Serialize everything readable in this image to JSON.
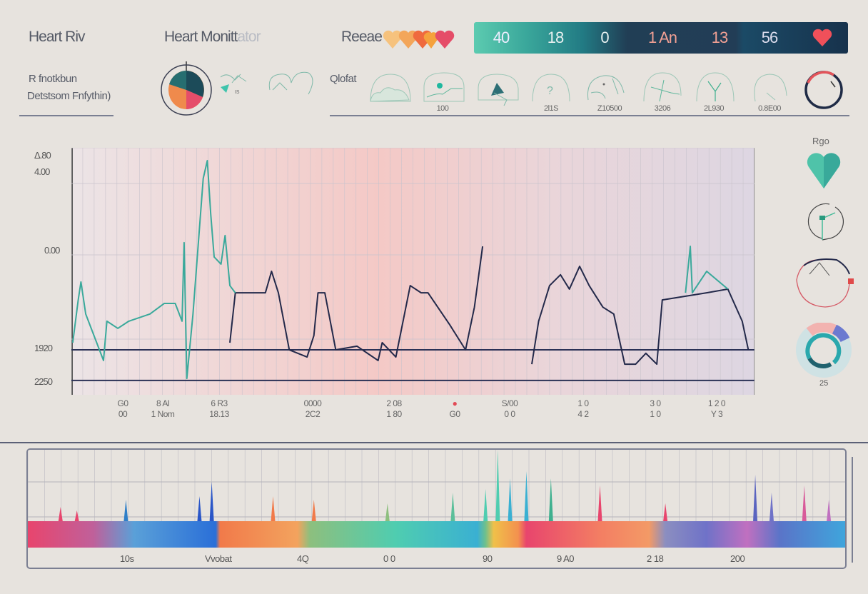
{
  "header": {
    "app_title": "Heart Riv",
    "monitor_title": "Heart Monitt",
    "monitor_title_faded": "ator",
    "rate_label": "Reeae",
    "subtitle_line1": "R fnotkbun",
    "subtitle_line2": "Detstsom Fnfythin)",
    "chart_label": "Qlofat"
  },
  "stats_bar": {
    "values": [
      "40",
      "18",
      "0",
      "1 An",
      "13",
      "56"
    ],
    "colors": [
      "#5ccbb0",
      "#3aa79b",
      "#227b84",
      "#213e55",
      "#223d56",
      "#1b4a66"
    ],
    "heart_color": "#f0505a"
  },
  "icon_row": {
    "labels": [
      "100",
      "2l1S",
      "Z10500",
      "3206",
      "2L930",
      "0.8E00"
    ]
  },
  "sidebar": {
    "title": "Rgo",
    "gauge_value": "25"
  },
  "chart_data": {
    "type": "line",
    "title": "",
    "xlabel": "",
    "ylabel": "",
    "xlim": [
      0,
      100
    ],
    "ylim": [
      0,
      100
    ],
    "y_tick_labels": [
      "Δ.80",
      "4.00",
      "0.00",
      "1920",
      "2250"
    ],
    "x_tick_labels": [
      [
        "G0",
        "00"
      ],
      [
        "8 Al",
        "1 Nom"
      ],
      [
        "6 R3",
        "18.13"
      ],
      [
        "0000",
        "2C2"
      ],
      [
        "2 08",
        "1 80"
      ],
      [
        "●",
        "G0"
      ],
      [
        "S/00",
        "0 0"
      ],
      [
        "1 0",
        "4 2"
      ],
      [
        "3 0",
        "1 0"
      ],
      [
        "1 2 0",
        "Y 3"
      ]
    ],
    "reference_lines": [
      18.2,
      5.8
    ],
    "series": [
      {
        "name": "primary",
        "color": "#23294a",
        "segments": [
          [
            [
              23.2,
              21.1
            ],
            [
              24.0,
              41.3
            ],
            [
              28.4,
              41.3
            ],
            [
              29.3,
              50.0
            ],
            [
              30.3,
              41.3
            ],
            [
              31.9,
              18.2
            ],
            [
              34.5,
              15.3
            ],
            [
              35.5,
              24.0
            ],
            [
              36.1,
              41.3
            ],
            [
              37.1,
              41.3
            ],
            [
              38.7,
              18.2
            ],
            [
              41.8,
              19.7
            ],
            [
              44.9,
              13.9
            ],
            [
              45.5,
              21.1
            ],
            [
              47.5,
              15.3
            ],
            [
              49.6,
              44.2
            ],
            [
              51.2,
              41.3
            ],
            [
              52.2,
              41.3
            ],
            [
              55.4,
              28.3
            ],
            [
              57.7,
              18.2
            ],
            [
              59.0,
              35.5
            ],
            [
              60.2,
              60.1
            ]
          ],
          [
            [
              67.4,
              12.4
            ],
            [
              68.4,
              29.8
            ],
            [
              70.0,
              44.2
            ],
            [
              71.6,
              48.6
            ],
            [
              72.9,
              42.8
            ],
            [
              74.4,
              52.0
            ],
            [
              75.8,
              44.2
            ],
            [
              77.8,
              35.5
            ],
            [
              79.4,
              32.7
            ],
            [
              81.0,
              12.4
            ],
            [
              82.6,
              12.4
            ],
            [
              84.1,
              16.8
            ],
            [
              85.7,
              12.4
            ],
            [
              86.5,
              38.4
            ],
            [
              93.0,
              41.3
            ],
            [
              96.1,
              42.8
            ],
            [
              98.2,
              29.8
            ],
            [
              99.1,
              18.2
            ]
          ]
        ]
      },
      {
        "name": "secondary",
        "color": "#3aa99b",
        "segments": [
          [
            [
              0.2,
              21.1
            ],
            [
              1.0,
              38.4
            ],
            [
              1.4,
              45.7
            ],
            [
              2.1,
              32.7
            ],
            [
              4.7,
              13.9
            ],
            [
              5.2,
              29.8
            ],
            [
              6.8,
              26.9
            ],
            [
              8.4,
              29.8
            ],
            [
              11.5,
              32.7
            ],
            [
              13.6,
              37.0
            ],
            [
              15.2,
              37.0
            ],
            [
              16.2,
              29.8
            ],
            [
              16.5,
              61.6
            ],
            [
              16.9,
              6.6
            ],
            [
              17.8,
              32.7
            ],
            [
              19.3,
              87.6
            ],
            [
              19.9,
              94.8
            ],
            [
              20.4,
              73.1
            ],
            [
              20.9,
              55.8
            ],
            [
              21.9,
              52.9
            ],
            [
              22.5,
              64.5
            ],
            [
              23.2,
              44.2
            ],
            [
              24.0,
              41.3
            ]
          ],
          [
            [
              89.9,
              41.3
            ],
            [
              90.6,
              60.1
            ],
            [
              90.9,
              41.3
            ],
            [
              93.0,
              50.0
            ],
            [
              96.1,
              42.8
            ]
          ]
        ]
      }
    ]
  },
  "spectrum": {
    "labels": [
      "10s",
      "Vvobat",
      "4Q",
      "0 0",
      "90",
      "9 A0",
      "2 18",
      "200"
    ],
    "spikes": [
      [
        4,
        20
      ],
      [
        6,
        15
      ],
      [
        12,
        30
      ],
      [
        21,
        35
      ],
      [
        22.5,
        55
      ],
      [
        30,
        35
      ],
      [
        35,
        30
      ],
      [
        44,
        25
      ],
      [
        52,
        40
      ],
      [
        56,
        45
      ],
      [
        57.5,
        100
      ],
      [
        59,
        60
      ],
      [
        61,
        70
      ],
      [
        64,
        60
      ],
      [
        70,
        50
      ],
      [
        78,
        25
      ],
      [
        89,
        65
      ],
      [
        91,
        40
      ],
      [
        95,
        50
      ],
      [
        98,
        30
      ]
    ]
  }
}
